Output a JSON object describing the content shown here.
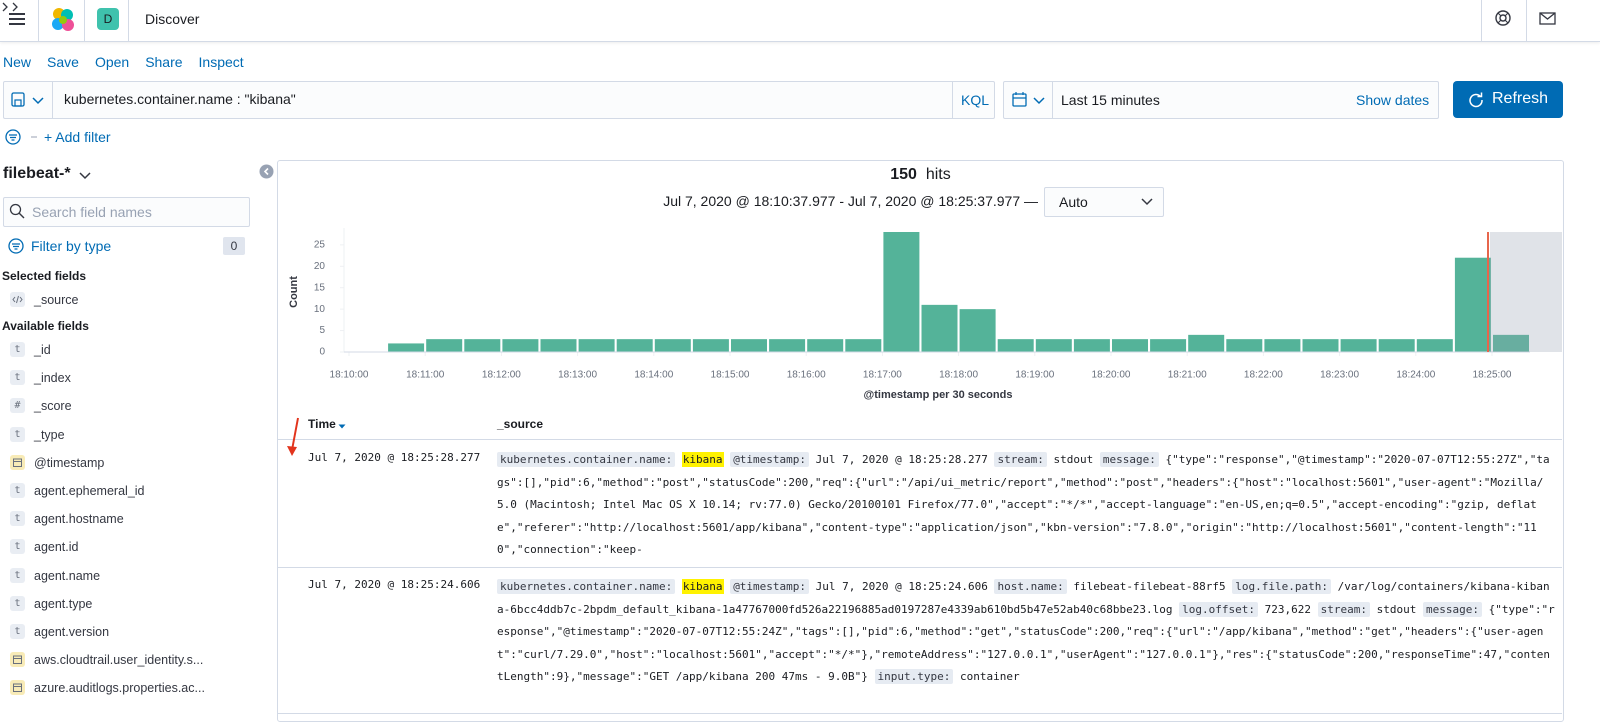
{
  "header": {
    "title": "Discover",
    "space_initial": "D"
  },
  "menu": [
    "New",
    "Save",
    "Open",
    "Share",
    "Inspect"
  ],
  "query": {
    "text": "kubernetes.container.name : \"kibana\"",
    "language": "KQL"
  },
  "time_picker": {
    "range": "Last 15 minutes",
    "show_dates": "Show dates",
    "refresh": "Refresh"
  },
  "filters": {
    "add": "+ Add filter"
  },
  "sidebar": {
    "index_pattern": "filebeat-*",
    "search_placeholder": "Search field names",
    "filter_by_type": "Filter by type",
    "filter_count": 0,
    "selected_heading": "Selected fields",
    "selected": [
      {
        "name": "_source"
      }
    ],
    "available_heading": "Available fields",
    "available": [
      {
        "name": "_id",
        "icon": "t"
      },
      {
        "name": "_index",
        "icon": "t"
      },
      {
        "name": "_score",
        "icon": "#"
      },
      {
        "name": "_type",
        "icon": "t"
      },
      {
        "name": "@timestamp"
      },
      {
        "name": "agent.ephemeral_id",
        "icon": "t"
      },
      {
        "name": "agent.hostname",
        "icon": "t"
      },
      {
        "name": "agent.id",
        "icon": "t"
      },
      {
        "name": "agent.name",
        "icon": "t"
      },
      {
        "name": "agent.type",
        "icon": "t"
      },
      {
        "name": "agent.version",
        "icon": "t"
      },
      {
        "name": "aws.cloudtrail.user_identity.s..."
      },
      {
        "name": "azure.auditlogs.properties.ac..."
      }
    ]
  },
  "hits": {
    "count": 150,
    "label": "hits",
    "range": "Jul 7, 2020 @ 18:10:37.977 - Jul 7, 2020 @ 18:25:37.977 —",
    "interval": "Auto"
  },
  "chart_data": {
    "type": "bar",
    "x_label": "@timestamp per 30 seconds",
    "y_label": "Count",
    "color": "#54b399",
    "categories": [
      "18:10:00",
      null,
      "18:11:00",
      null,
      "18:12:00",
      null,
      "18:13:00",
      null,
      "18:14:00",
      null,
      "18:15:00",
      null,
      "18:16:00",
      null,
      "18:17:00",
      null,
      "18:18:00",
      null,
      "18:19:00",
      null,
      "18:20:00",
      null,
      "18:21:00",
      null,
      "18:22:00",
      null,
      "18:23:00",
      null,
      "18:24:00",
      null,
      "18:25:00"
    ],
    "values": [
      null,
      2,
      3,
      3,
      3,
      3,
      3,
      3,
      3,
      3,
      3,
      3,
      3,
      3,
      28,
      11,
      10,
      3,
      3,
      3,
      3,
      3,
      4,
      3,
      3,
      3,
      3,
      3,
      3,
      22,
      4
    ],
    "ylim": [
      0,
      28
    ],
    "yticks": [
      0,
      5,
      10,
      15,
      20,
      25
    ],
    "grid": false
  },
  "table": {
    "columns": [
      "Time",
      "_source"
    ],
    "rows": [
      {
        "time": "Jul 7, 2020 @ 18:25:28.277",
        "source": [
          {
            "key": "kubernetes.container.name:",
            "value": "kibana",
            "highlight": true
          },
          {
            "key": "@timestamp:",
            "value": "Jul 7, 2020 @ 18:25:28.277"
          },
          {
            "key": "stream:",
            "value": "stdout"
          },
          {
            "key": "message:",
            "value": "{\"type\":\"response\",\"@timestamp\":\"2020-07-07T12:55:27Z\",\"tags\":[],\"pid\":6,\"method\":\"post\",\"statusCode\":200,\"req\":{\"url\":\"/api/ui_metric/report\",\"method\":\"post\",\"headers\":{\"host\":\"localhost:5601\",\"user-agent\":\"Mozilla/5.0 (Macintosh; Intel Mac OS X 10.14; rv:77.0) Gecko/20100101 Firefox/77.0\",\"accept\":\"*/*\",\"accept-language\":\"en-US,en;q=0.5\",\"accept-encoding\":\"gzip, deflate\",\"referer\":\"http://localhost:5601/app/kibana\",\"content-type\":\"application/json\",\"kbn-version\":\"7.8.0\",\"origin\":\"http://localhost:5601\",\"content-length\":\"110\",\"connection\":\"keep-"
          }
        ]
      },
      {
        "time": "Jul 7, 2020 @ 18:25:24.606",
        "source": [
          {
            "key": "kubernetes.container.name:",
            "value": "kibana",
            "highlight": true
          },
          {
            "key": "@timestamp:",
            "value": "Jul 7, 2020 @ 18:25:24.606"
          },
          {
            "key": "host.name:",
            "value": "filebeat-filebeat-88rf5"
          },
          {
            "key": "log.file.path:",
            "value": "/var/log/containers/kibana-kibana-6bcc4ddb7c-2bpdm_default_kibana-1a47767000fd526a22196885ad0197287e4339ab610bd5b47e52ab40c68bbe23.log"
          },
          {
            "key": "log.offset:",
            "value": "723,622"
          },
          {
            "key": "stream:",
            "value": "stdout"
          },
          {
            "key": "message:",
            "value": "{\"type\":\"response\",\"@timestamp\":\"2020-07-07T12:55:24Z\",\"tags\":[],\"pid\":6,\"method\":\"get\",\"statusCode\":200,\"req\":{\"url\":\"/app/kibana\",\"method\":\"get\",\"headers\":{\"user-agent\":\"curl/7.29.0\",\"host\":\"localhost:5601\",\"accept\":\"*/*\"},\"remoteAddress\":\"127.0.0.1\",\"userAgent\":\"127.0.0.1\"},\"res\":{\"statusCode\":200,\"responseTime\":47,\"contentLength\":9},\"message\":\"GET /app/kibana 200 47ms - 9.0B\"}"
          },
          {
            "key": "input.type:",
            "value": "container"
          }
        ]
      }
    ]
  }
}
